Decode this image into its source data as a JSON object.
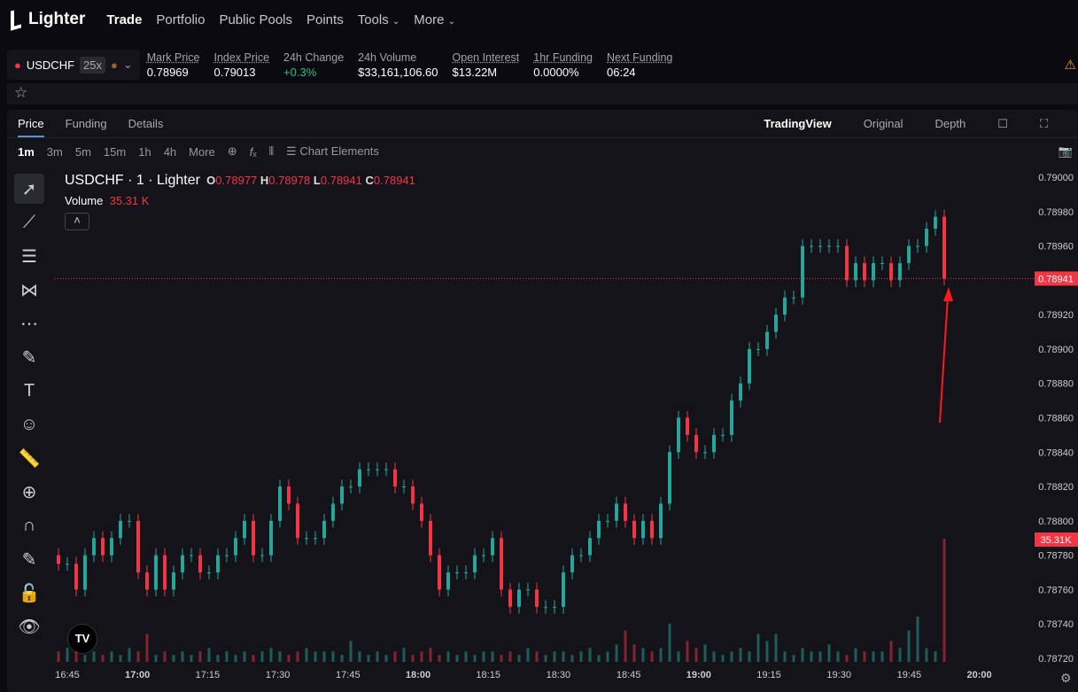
{
  "nav": {
    "brand": "Lighter",
    "items": [
      "Trade",
      "Portfolio",
      "Public Pools",
      "Points",
      "Tools",
      "More"
    ]
  },
  "market": {
    "symbol": "USDCHF",
    "leverage": "25x",
    "stats": [
      {
        "label": "Mark Price",
        "value": "0.78969"
      },
      {
        "label": "Index Price",
        "value": "0.79013"
      },
      {
        "label": "24h Change",
        "value": "+0.3%"
      },
      {
        "label": "24h Volume",
        "value": "$33,161,106.60"
      },
      {
        "label": "Open Interest",
        "value": "$13.22M"
      },
      {
        "label": "1hr Funding",
        "value": "0.0000%"
      },
      {
        "label": "Next Funding",
        "value": "06:24"
      }
    ]
  },
  "panel_tabs": [
    "Price",
    "Funding",
    "Details"
  ],
  "view_tabs": [
    "TradingView",
    "Original",
    "Depth"
  ],
  "intervals": [
    "1m",
    "3m",
    "5m",
    "15m",
    "1h",
    "4h",
    "More"
  ],
  "chart_elements_label": "Chart Elements",
  "legend": {
    "title": "USDCHF · 1 · Lighter",
    "o": "0.78977",
    "h": "0.78978",
    "l": "0.78941",
    "c": "0.78941",
    "volume_label": "Volume",
    "volume": "35.31 K"
  },
  "colors": {
    "up": "#26a69a",
    "down": "#f23645",
    "bg": "#14131a"
  },
  "chart_data": {
    "type": "candlestick",
    "yticks": [
      "0.79000",
      "0.78980",
      "0.78960",
      "0.78940",
      "0.78920",
      "0.78900",
      "0.78880",
      "0.78860",
      "0.78840",
      "0.78820",
      "0.78800",
      "0.78780",
      "0.78760",
      "0.78740",
      "0.78720"
    ],
    "ylim": [
      0.7872,
      0.79
    ],
    "xticks": [
      "16:45",
      "17:00",
      "17:15",
      "17:30",
      "17:45",
      "18:00",
      "18:15",
      "18:30",
      "18:45",
      "19:00",
      "19:15",
      "19:30",
      "19:45",
      "20:00"
    ],
    "last_price": "0.78941",
    "last_volume": "35.31K",
    "closes": [
      0.78775,
      0.78775,
      0.7876,
      0.7878,
      0.7879,
      0.7878,
      0.7879,
      0.788,
      0.788,
      0.7877,
      0.7876,
      0.7878,
      0.7876,
      0.7877,
      0.7878,
      0.7878,
      0.7877,
      0.7877,
      0.7878,
      0.7878,
      0.7879,
      0.788,
      0.7878,
      0.7878,
      0.788,
      0.7882,
      0.7881,
      0.7879,
      0.7879,
      0.7879,
      0.788,
      0.7881,
      0.7882,
      0.7882,
      0.7883,
      0.7883,
      0.7883,
      0.7883,
      0.7882,
      0.7882,
      0.7881,
      0.788,
      0.7878,
      0.7876,
      0.7877,
      0.7877,
      0.7877,
      0.7878,
      0.7878,
      0.7879,
      0.7876,
      0.7875,
      0.7876,
      0.7876,
      0.7875,
      0.7875,
      0.7875,
      0.7877,
      0.7878,
      0.7878,
      0.7879,
      0.788,
      0.788,
      0.7881,
      0.788,
      0.7879,
      0.788,
      0.7879,
      0.7881,
      0.7884,
      0.7886,
      0.7885,
      0.7884,
      0.7884,
      0.7885,
      0.7885,
      0.7887,
      0.7888,
      0.789,
      0.789,
      0.7891,
      0.7892,
      0.7893,
      0.7893,
      0.7896,
      0.7896,
      0.7896,
      0.7896,
      0.7896,
      0.7894,
      0.7895,
      0.7894,
      0.7895,
      0.7895,
      0.7894,
      0.7895,
      0.7896,
      0.7896,
      0.7897,
      0.78977,
      0.78941
    ],
    "volumes_k": [
      3,
      4,
      3,
      2,
      3,
      2,
      3,
      2,
      4,
      3,
      8,
      2,
      3,
      2,
      3,
      2,
      3,
      4,
      2,
      3,
      2,
      3,
      2,
      3,
      4,
      3,
      2,
      3,
      4,
      3,
      3,
      3,
      2,
      6,
      3,
      2,
      3,
      2,
      3,
      4,
      2,
      3,
      4,
      2,
      3,
      2,
      3,
      2,
      3,
      3,
      2,
      3,
      2,
      4,
      3,
      2,
      3,
      3,
      2,
      3,
      4,
      2,
      3,
      5,
      9,
      5,
      4,
      3,
      4,
      11,
      3,
      6,
      4,
      5,
      3,
      2,
      3,
      4,
      3,
      8,
      6,
      8,
      3,
      2,
      4,
      3,
      3,
      5,
      3,
      2,
      4,
      3,
      3,
      3,
      6,
      4,
      9,
      13,
      4,
      3,
      35.31
    ]
  }
}
